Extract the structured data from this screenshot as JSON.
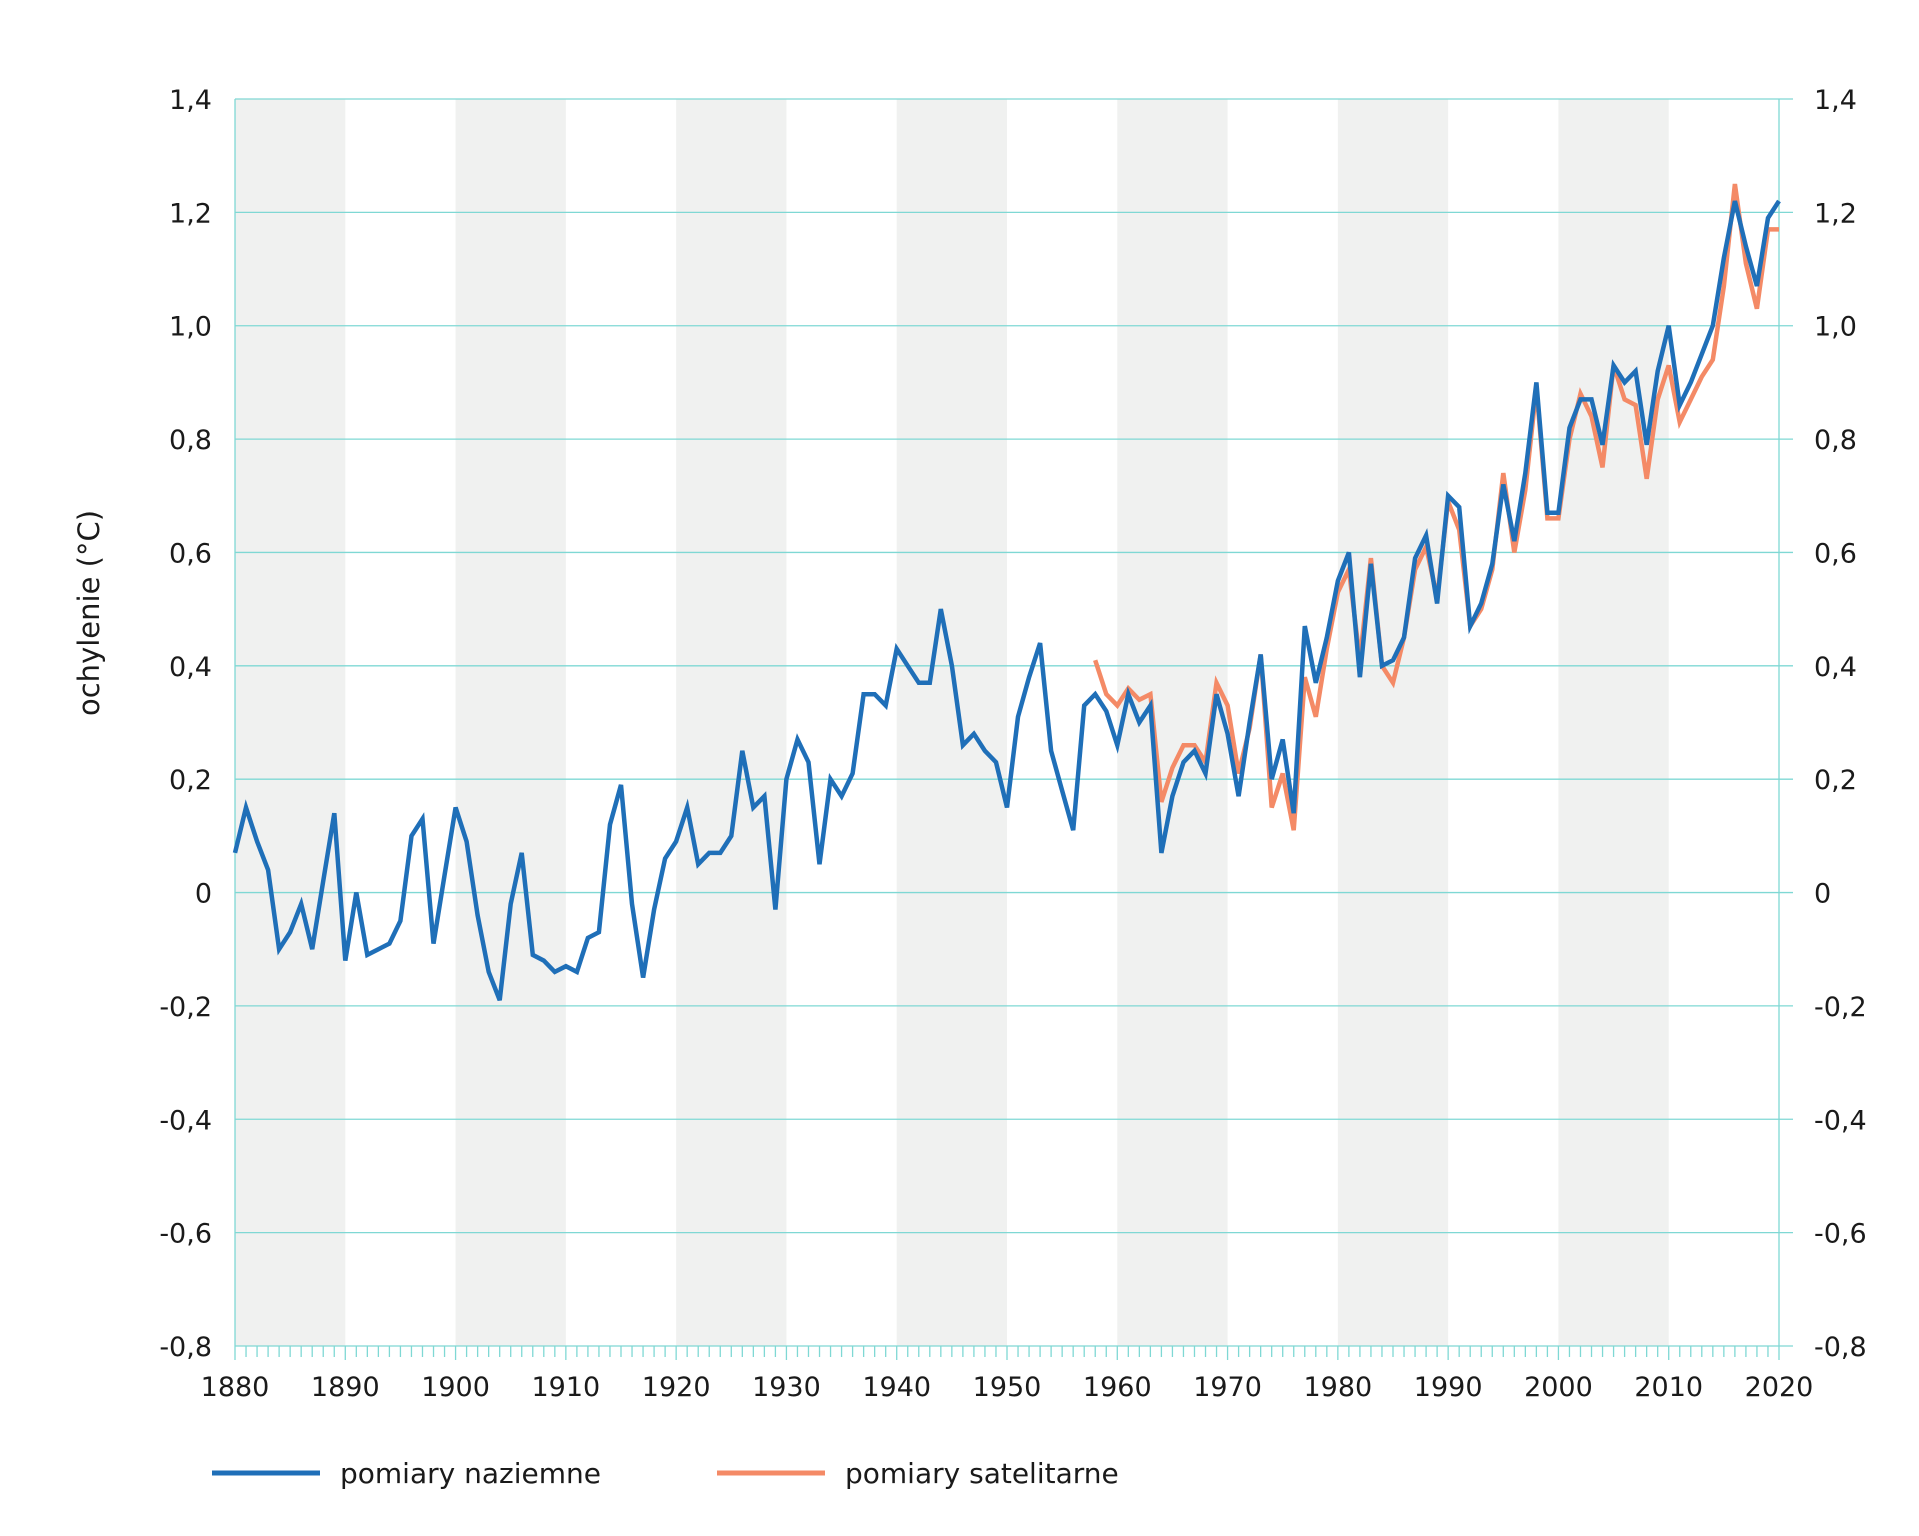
{
  "chart_data": {
    "type": "line",
    "title": "",
    "xlabel": "",
    "ylabel": "ochylenie (°C)",
    "xlim": [
      1880,
      2020
    ],
    "ylim": [
      -0.8,
      1.4
    ],
    "x_ticks": [
      "1880",
      "1890",
      "1900",
      "1910",
      "1920",
      "1930",
      "1940",
      "1950",
      "1960",
      "1970",
      "1980",
      "1990",
      "2000",
      "2010",
      "2020"
    ],
    "y_ticks": [
      "-0,8",
      "-0,6",
      "-0,4",
      "-0,2",
      "0",
      "0,2",
      "0,4",
      "0,6",
      "0,8",
      "1,0",
      "1,2",
      "1,4"
    ],
    "y_tick_values": [
      -0.8,
      -0.6,
      -0.4,
      -0.2,
      0,
      0.2,
      0.4,
      0.6,
      0.8,
      1.0,
      1.2,
      1.4
    ],
    "grid": true,
    "alternating_decade_shading": true,
    "legend_position": "bottom",
    "colors": {
      "grid": "#7fd8d4",
      "band": "#f0f1f0",
      "naziemne": "#1f6fb8",
      "satelitarne": "#f48a66"
    },
    "series": [
      {
        "name": "pomiary naziemne",
        "x_start": 1880,
        "values": [
          0.07,
          0.15,
          0.09,
          0.04,
          -0.1,
          -0.07,
          -0.02,
          -0.1,
          0.02,
          0.14,
          -0.12,
          0.0,
          -0.11,
          -0.1,
          -0.09,
          -0.05,
          0.1,
          0.13,
          -0.09,
          0.03,
          0.15,
          0.09,
          -0.04,
          -0.14,
          -0.19,
          -0.02,
          0.07,
          -0.11,
          -0.12,
          -0.14,
          -0.13,
          -0.14,
          -0.08,
          -0.07,
          0.12,
          0.19,
          -0.02,
          -0.15,
          -0.03,
          0.06,
          0.09,
          0.15,
          0.05,
          0.07,
          0.07,
          0.1,
          0.25,
          0.15,
          0.17,
          -0.03,
          0.2,
          0.27,
          0.23,
          0.05,
          0.2,
          0.17,
          0.21,
          0.35,
          0.35,
          0.33,
          0.43,
          0.4,
          0.37,
          0.37,
          0.5,
          0.4,
          0.26,
          0.28,
          0.25,
          0.23,
          0.15,
          0.31,
          0.38,
          0.44,
          0.25,
          0.18,
          0.11,
          0.33,
          0.35,
          0.32,
          0.26,
          0.35,
          0.3,
          0.33,
          0.07,
          0.17,
          0.23,
          0.25,
          0.21,
          0.35,
          0.28,
          0.17,
          0.3,
          0.42,
          0.2,
          0.27,
          0.14,
          0.47,
          0.37,
          0.45,
          0.55,
          0.6,
          0.38,
          0.58,
          0.4,
          0.41,
          0.45,
          0.59,
          0.63,
          0.51,
          0.7,
          0.68,
          0.47,
          0.51,
          0.58,
          0.72,
          0.62,
          0.74,
          0.9,
          0.67,
          0.67,
          0.82,
          0.87,
          0.87,
          0.79,
          0.93,
          0.9,
          0.92,
          0.79,
          0.92,
          1.0,
          0.86,
          0.9,
          0.95,
          1.0,
          1.12,
          1.22,
          1.14,
          1.07,
          1.19,
          1.22
        ]
      },
      {
        "name": "pomiary satelitarne",
        "x_start": 1958,
        "values": [
          0.41,
          0.35,
          0.33,
          0.36,
          0.34,
          0.35,
          0.16,
          0.22,
          0.26,
          0.26,
          0.23,
          0.37,
          0.33,
          0.21,
          0.29,
          0.42,
          0.15,
          0.21,
          0.11,
          0.38,
          0.31,
          0.43,
          0.53,
          0.57,
          0.41,
          0.59,
          0.4,
          0.37,
          0.45,
          0.57,
          0.61,
          0.52,
          0.69,
          0.64,
          0.47,
          0.5,
          0.57,
          0.74,
          0.6,
          0.71,
          0.89,
          0.66,
          0.66,
          0.8,
          0.88,
          0.84,
          0.75,
          0.93,
          0.87,
          0.86,
          0.73,
          0.87,
          0.93,
          0.83,
          0.87,
          0.91,
          0.94,
          1.07,
          1.25,
          1.11,
          1.03,
          1.17,
          1.17
        ]
      }
    ]
  }
}
